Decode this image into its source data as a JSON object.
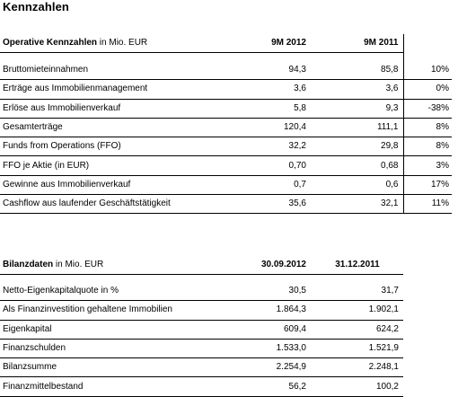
{
  "title": "Kennzahlen",
  "operative": {
    "header_bold": "Operative Kennzahlen",
    "header_rest": " in Mio. EUR",
    "col1": "9M 2012",
    "col2": "9M 2011",
    "rows": [
      {
        "label": "Bruttomieteinnahmen",
        "v1": "94,3",
        "v2": "85,8",
        "chg": "10%"
      },
      {
        "label": "Erträge aus Immobilienmanagement",
        "v1": "3,6",
        "v2": "3,6",
        "chg": "0%"
      },
      {
        "label": "Erlöse aus Immobilienverkauf",
        "v1": "5,8",
        "v2": "9,3",
        "chg": "-38%"
      },
      {
        "label": "Gesamterträge",
        "v1": "120,4",
        "v2": "111,1",
        "chg": "8%"
      },
      {
        "label": "Funds from Operations (FFO)",
        "v1": "32,2",
        "v2": "29,8",
        "chg": "8%"
      },
      {
        "label": "FFO je Aktie (in EUR)",
        "v1": "0,70",
        "v2": "0,68",
        "chg": "3%"
      },
      {
        "label": "Gewinne aus Immobilienverkauf",
        "v1": "0,7",
        "v2": "0,6",
        "chg": "17%"
      },
      {
        "label": "Cashflow aus laufender Geschäftstätigkeit",
        "v1": "35,6",
        "v2": "32,1",
        "chg": "11%"
      }
    ]
  },
  "bilanz": {
    "header_bold": "Bilanzdaten",
    "header_rest": " in Mio. EUR",
    "col1": "30.09.2012",
    "col2": "31.12.2011",
    "rows": [
      {
        "label": "Netto-Eigenkapitalquote in %",
        "v1": "30,5",
        "v2": "31,7"
      },
      {
        "label": "Als Finanzinvestition gehaltene Immobilien",
        "v1": "1.864,3",
        "v2": "1.902,1"
      },
      {
        "label": "Eigenkapital",
        "v1": "609,4",
        "v2": "624,2"
      },
      {
        "label": "Finanzschulden",
        "v1": "1.533,0",
        "v2": "1.521,9"
      },
      {
        "label": "Bilanzsumme",
        "v1": "2.254,9",
        "v2": "2.248,1"
      },
      {
        "label": "Finanzmittelbestand",
        "v1": "56,2",
        "v2": "100,2"
      }
    ]
  }
}
